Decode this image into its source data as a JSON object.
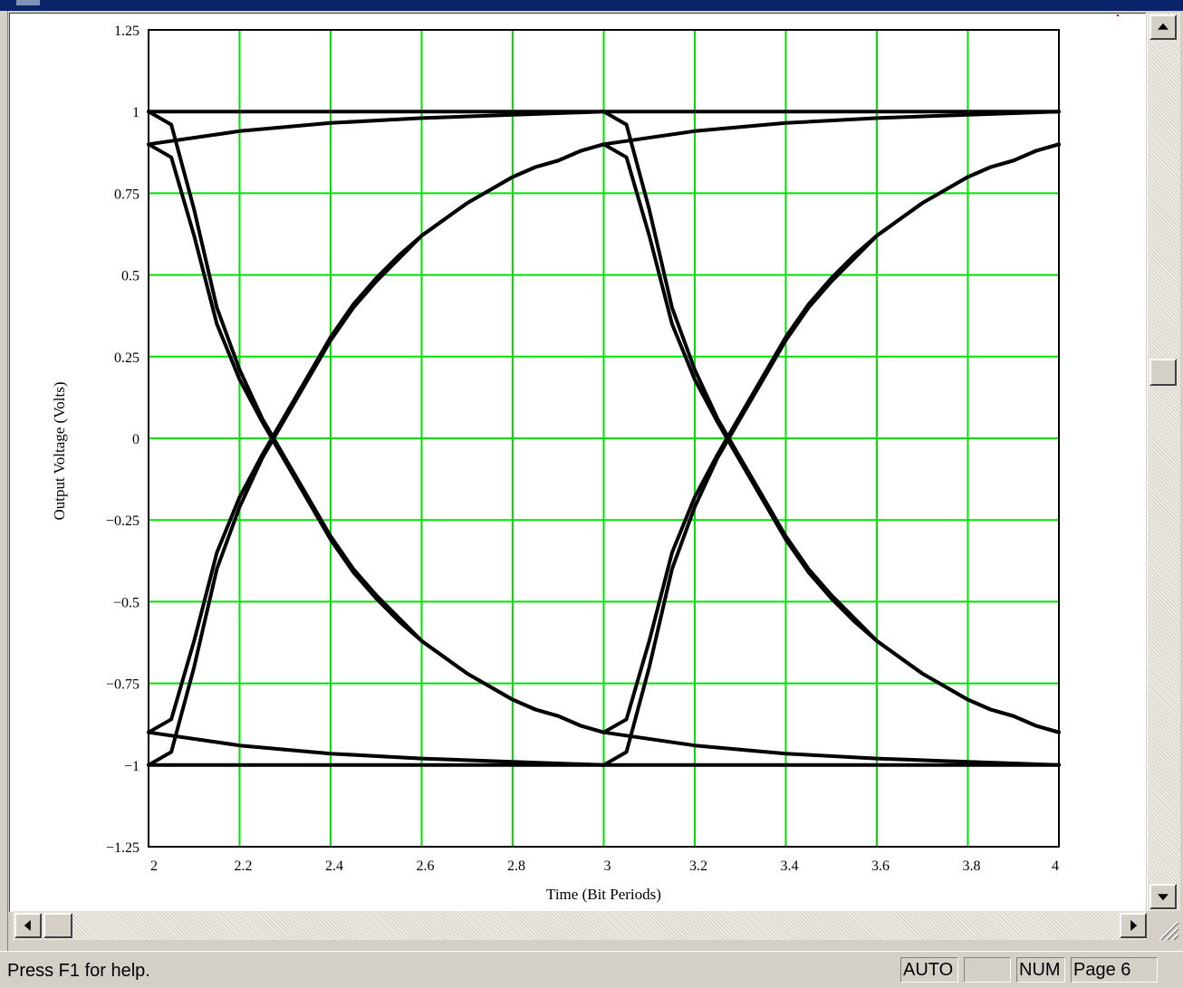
{
  "status_bar": {
    "help_text": "Press F1 for help.",
    "panes": [
      "AUTO",
      "",
      "NUM",
      "Page 6"
    ]
  },
  "icons": {
    "scroll_up": "arrow-up-icon",
    "scroll_down": "arrow-down-icon",
    "scroll_left": "arrow-left-icon",
    "scroll_right": "arrow-right-icon",
    "size_grip": "size-grip-icon"
  },
  "colors": {
    "grid": "#00e000",
    "trace": "#000000",
    "plot_background": "#ffffff"
  },
  "chart_data": {
    "type": "line",
    "title": "",
    "xlabel": "Time (Bit Periods)",
    "ylabel": "Output Voltage (Volts)",
    "xlim": [
      2,
      4
    ],
    "ylim": [
      -1.25,
      1.25
    ],
    "x_ticks": [
      2,
      2.2,
      2.4,
      2.6,
      2.8,
      3,
      3.2,
      3.4,
      3.6,
      3.8,
      4
    ],
    "x_tick_labels": [
      "2",
      "2.2",
      "2.4",
      "2.6",
      "2.8",
      "3",
      "3.2",
      "3.4",
      "3.6",
      "3.8",
      "4"
    ],
    "y_ticks": [
      1.25,
      1,
      0.75,
      0.5,
      0.25,
      0,
      -0.25,
      -0.5,
      -0.75,
      -1,
      -1.25
    ],
    "y_tick_labels": [
      "1.25",
      "1",
      "0.75",
      "0.5",
      "0.25",
      "0",
      "−0.25",
      "−0.5",
      "−0.75",
      "−1",
      "−1.25"
    ],
    "grid": true,
    "legend": "none",
    "series": [
      {
        "x": [
          2,
          2.05,
          2.1,
          2.15,
          2.2,
          2.25,
          2.3,
          2.35,
          2.4,
          2.45,
          2.5,
          2.55,
          2.6,
          2.65,
          2.7,
          2.75,
          2.8,
          2.85,
          2.9,
          2.95,
          3
        ],
        "y": [
          1.0,
          0.96,
          0.7,
          0.4,
          0.21,
          0.06,
          -0.06,
          -0.18,
          -0.3,
          -0.4,
          -0.48,
          -0.55,
          -0.62,
          -0.67,
          -0.72,
          -0.76,
          -0.8,
          -0.83,
          -0.85,
          -0.88,
          -0.9
        ]
      },
      {
        "x": [
          2,
          2.05,
          2.1,
          2.15,
          2.2,
          2.25,
          2.3,
          2.35,
          2.4,
          2.45,
          2.5,
          2.55,
          2.6,
          2.65,
          2.7,
          2.75,
          2.8,
          2.85,
          2.9,
          2.95,
          3
        ],
        "y": [
          0.9,
          0.86,
          0.62,
          0.35,
          0.18,
          0.05,
          -0.07,
          -0.19,
          -0.31,
          -0.41,
          -0.49,
          -0.56,
          -0.62,
          -0.67,
          -0.72,
          -0.76,
          -0.8,
          -0.83,
          -0.85,
          -0.88,
          -0.9
        ]
      },
      {
        "x": [
          2,
          2.05,
          2.1,
          2.15,
          2.2,
          2.25,
          2.3,
          2.35,
          2.4,
          2.45,
          2.5,
          2.55,
          2.6,
          2.65,
          2.7,
          2.75,
          2.8,
          2.85,
          2.9,
          2.95,
          3
        ],
        "y": [
          -1.0,
          -0.96,
          -0.7,
          -0.4,
          -0.21,
          -0.06,
          0.06,
          0.18,
          0.3,
          0.4,
          0.48,
          0.55,
          0.62,
          0.67,
          0.72,
          0.76,
          0.8,
          0.83,
          0.85,
          0.88,
          0.9
        ]
      },
      {
        "x": [
          2,
          2.05,
          2.1,
          2.15,
          2.2,
          2.25,
          2.3,
          2.35,
          2.4,
          2.45,
          2.5,
          2.55,
          2.6,
          2.65,
          2.7,
          2.75,
          2.8,
          2.85,
          2.9,
          2.95,
          3
        ],
        "y": [
          -0.9,
          -0.86,
          -0.62,
          -0.35,
          -0.18,
          -0.05,
          0.07,
          0.19,
          0.31,
          0.41,
          0.49,
          0.56,
          0.62,
          0.67,
          0.72,
          0.76,
          0.8,
          0.83,
          0.85,
          0.88,
          0.9
        ]
      },
      {
        "x": [
          2,
          2.2,
          2.4,
          2.6,
          2.8,
          3
        ],
        "y": [
          0.9,
          0.94,
          0.965,
          0.98,
          0.99,
          1.0
        ]
      },
      {
        "x": [
          2,
          2.2,
          2.4,
          2.6,
          2.8,
          3
        ],
        "y": [
          -0.9,
          -0.94,
          -0.965,
          -0.98,
          -0.99,
          -1.0
        ]
      },
      {
        "x": [
          2,
          3
        ],
        "y": [
          1.0,
          1.0
        ]
      },
      {
        "x": [
          2,
          3
        ],
        "y": [
          -1.0,
          -1.0
        ]
      },
      {
        "x": [
          3,
          3.05,
          3.1,
          3.15,
          3.2,
          3.25,
          3.3,
          3.35,
          3.4,
          3.45,
          3.5,
          3.55,
          3.6,
          3.65,
          3.7,
          3.75,
          3.8,
          3.85,
          3.9,
          3.95,
          4
        ],
        "y": [
          1.0,
          0.96,
          0.7,
          0.4,
          0.21,
          0.06,
          -0.06,
          -0.18,
          -0.3,
          -0.4,
          -0.48,
          -0.55,
          -0.62,
          -0.67,
          -0.72,
          -0.76,
          -0.8,
          -0.83,
          -0.85,
          -0.88,
          -0.9
        ]
      },
      {
        "x": [
          3,
          3.05,
          3.1,
          3.15,
          3.2,
          3.25,
          3.3,
          3.35,
          3.4,
          3.45,
          3.5,
          3.55,
          3.6,
          3.65,
          3.7,
          3.75,
          3.8,
          3.85,
          3.9,
          3.95,
          4
        ],
        "y": [
          0.9,
          0.86,
          0.62,
          0.35,
          0.18,
          0.05,
          -0.07,
          -0.19,
          -0.31,
          -0.41,
          -0.49,
          -0.56,
          -0.62,
          -0.67,
          -0.72,
          -0.76,
          -0.8,
          -0.83,
          -0.85,
          -0.88,
          -0.9
        ]
      },
      {
        "x": [
          3,
          3.05,
          3.1,
          3.15,
          3.2,
          3.25,
          3.3,
          3.35,
          3.4,
          3.45,
          3.5,
          3.55,
          3.6,
          3.65,
          3.7,
          3.75,
          3.8,
          3.85,
          3.9,
          3.95,
          4
        ],
        "y": [
          -1.0,
          -0.96,
          -0.7,
          -0.4,
          -0.21,
          -0.06,
          0.06,
          0.18,
          0.3,
          0.4,
          0.48,
          0.55,
          0.62,
          0.67,
          0.72,
          0.76,
          0.8,
          0.83,
          0.85,
          0.88,
          0.9
        ]
      },
      {
        "x": [
          3,
          3.05,
          3.1,
          3.15,
          3.2,
          3.25,
          3.3,
          3.35,
          3.4,
          3.45,
          3.5,
          3.55,
          3.6,
          3.65,
          3.7,
          3.75,
          3.8,
          3.85,
          3.9,
          3.95,
          4
        ],
        "y": [
          -0.9,
          -0.86,
          -0.62,
          -0.35,
          -0.18,
          -0.05,
          0.07,
          0.19,
          0.31,
          0.41,
          0.49,
          0.56,
          0.62,
          0.67,
          0.72,
          0.76,
          0.8,
          0.83,
          0.85,
          0.88,
          0.9
        ]
      },
      {
        "x": [
          3,
          3.2,
          3.4,
          3.6,
          3.8,
          4
        ],
        "y": [
          0.9,
          0.94,
          0.965,
          0.98,
          0.99,
          1.0
        ]
      },
      {
        "x": [
          3,
          3.2,
          3.4,
          3.6,
          3.8,
          4
        ],
        "y": [
          -0.9,
          -0.94,
          -0.965,
          -0.98,
          -0.99,
          -1.0
        ]
      },
      {
        "x": [
          3,
          4
        ],
        "y": [
          1.0,
          1.0
        ]
      },
      {
        "x": [
          3,
          4
        ],
        "y": [
          -1.0,
          -1.0
        ]
      }
    ]
  }
}
